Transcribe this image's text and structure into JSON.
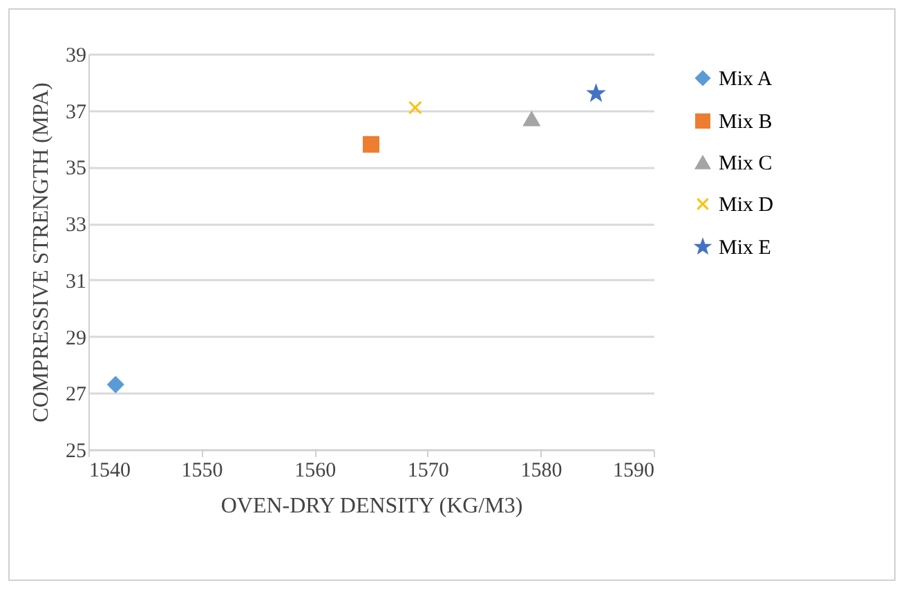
{
  "chart_data": {
    "type": "scatter",
    "xlabel": "OVEN-DRY DENSITY (KG/M3)",
    "ylabel": "COMPRESSIVE STRENGTH (MPA)",
    "xlim": [
      1540,
      1590
    ],
    "xticks": [
      1540,
      1550,
      1560,
      1570,
      1580,
      1590
    ],
    "ylim": [
      25,
      39
    ],
    "yticks": [
      25,
      27,
      29,
      31,
      33,
      35,
      37,
      39
    ],
    "grid": "y",
    "legend": "right",
    "series": [
      {
        "name": "Mix A",
        "color": "#5b9bd5",
        "marker": "diamond",
        "x": [
          1542.4
        ],
        "values": [
          27.3
        ]
      },
      {
        "name": "Mix B",
        "color": "#ed7d31",
        "marker": "square",
        "x": [
          1565
        ],
        "values": [
          35.8
        ]
      },
      {
        "name": "Mix C",
        "color": "#a5a5a5",
        "marker": "triangle",
        "x": [
          1579.2
        ],
        "values": [
          36.7
        ]
      },
      {
        "name": "Mix D",
        "color": "#ffc000",
        "marker": "cross",
        "x": [
          1568.9
        ],
        "values": [
          37.1
        ]
      },
      {
        "name": "Mix E",
        "color": "#4472c4",
        "marker": "star",
        "x": [
          1584.9
        ],
        "values": [
          37.6
        ]
      }
    ]
  }
}
